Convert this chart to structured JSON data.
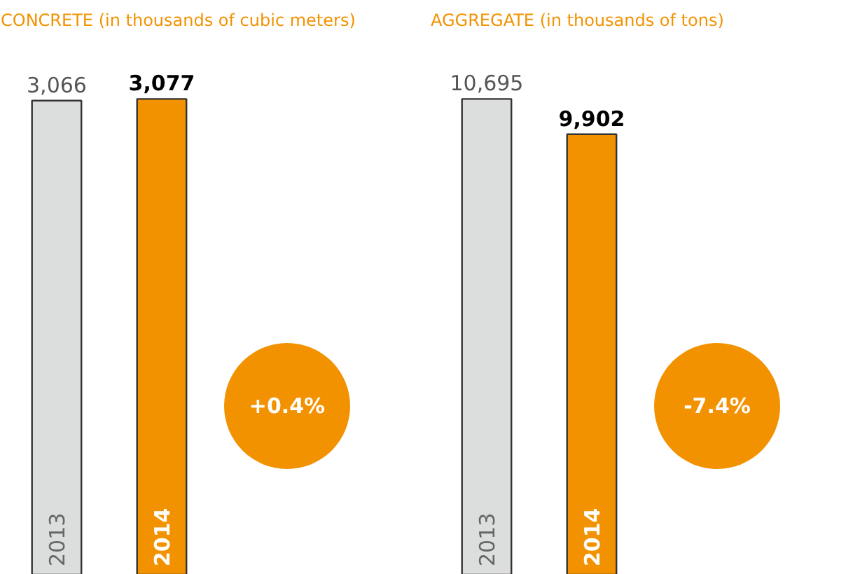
{
  "chart_data": [
    {
      "type": "bar",
      "title": "CONCRETE (in thousands of cubic meters)",
      "categories": [
        "2013",
        "2014"
      ],
      "values": [
        3066,
        3077
      ],
      "colors": [
        "#dcdddd",
        "#f39200"
      ],
      "value_labels": [
        "3,066",
        "3,077"
      ],
      "annotations": [
        "+0.4%"
      ]
    },
    {
      "type": "bar",
      "title": "AGGREGATE (in thousands of tons)",
      "categories": [
        "2013",
        "2014"
      ],
      "values": [
        10695,
        9902
      ],
      "colors": [
        "#dcdddd",
        "#f39200"
      ],
      "value_labels": [
        "10,695",
        "9,902"
      ],
      "annotations": [
        "-7.4%"
      ]
    }
  ]
}
